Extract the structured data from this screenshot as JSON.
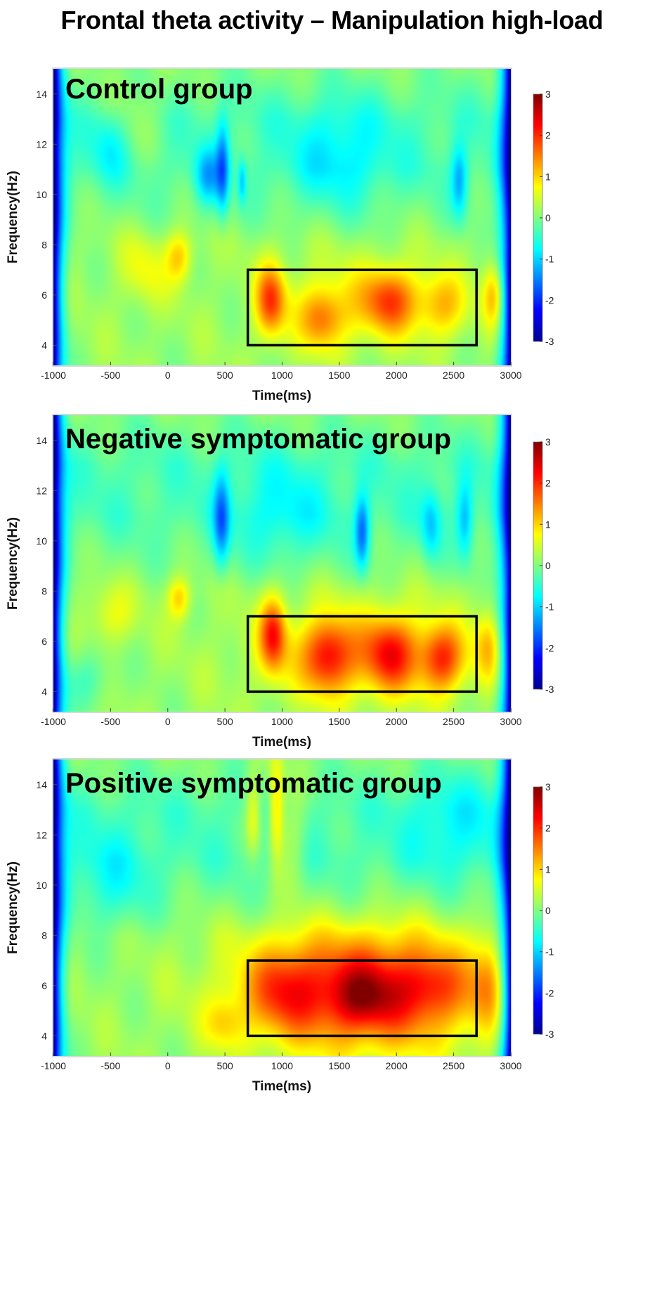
{
  "figure_title": "Frontal theta activity – Manipulation high-load",
  "chart_data": [
    {
      "type": "heatmap",
      "title": "Control group",
      "xlabel": "Time(ms)",
      "ylabel": "Frequency(Hz)",
      "xlim": [
        -1000,
        3000
      ],
      "ylim": [
        3.2,
        15
      ],
      "xticks": [
        -1000,
        -500,
        0,
        500,
        1000,
        1500,
        2000,
        2500,
        3000
      ],
      "yticks": [
        4,
        6,
        8,
        10,
        12,
        14
      ],
      "colorbar": {
        "range": [
          -3,
          3
        ],
        "ticks": [
          3,
          2,
          1,
          0,
          -1,
          -2,
          -3
        ],
        "colormap": "jet"
      },
      "roi": {
        "time": [
          700,
          2700
        ],
        "freq": [
          4,
          7
        ]
      },
      "blobs": [
        {
          "t": 900,
          "f": 5.8,
          "amp": 1.6,
          "st": 90,
          "sf": 1.0
        },
        {
          "t": 1350,
          "f": 5.0,
          "amp": 1.0,
          "st": 130,
          "sf": 0.8
        },
        {
          "t": 1950,
          "f": 5.8,
          "amp": 1.4,
          "st": 160,
          "sf": 0.9
        },
        {
          "t": 2400,
          "f": 5.6,
          "amp": 1.0,
          "st": 150,
          "sf": 0.9
        },
        {
          "t": 2850,
          "f": 6.0,
          "amp": 1.0,
          "st": 70,
          "sf": 0.9
        },
        {
          "t": 1550,
          "f": 5.6,
          "amp": 0.6,
          "st": 400,
          "sf": 1.2
        },
        {
          "t": 100,
          "f": 7.5,
          "amp": 0.9,
          "st": 80,
          "sf": 0.7
        },
        {
          "t": -200,
          "f": 7.0,
          "amp": 0.5,
          "st": 150,
          "sf": 1.0
        },
        {
          "t": 350,
          "f": 10.7,
          "amp": -1.0,
          "st": 80,
          "sf": 0.8
        },
        {
          "t": 480,
          "f": 11.0,
          "amp": -1.2,
          "st": 40,
          "sf": 1.3
        },
        {
          "t": 650,
          "f": 10.5,
          "amp": -0.8,
          "st": 25,
          "sf": 0.6
        },
        {
          "t": 2550,
          "f": 10.5,
          "amp": -1.0,
          "st": 50,
          "sf": 1.0
        },
        {
          "t": -500,
          "f": 12.0,
          "amp": -0.6,
          "st": 120,
          "sf": 1.0
        },
        {
          "t": 1500,
          "f": 11.5,
          "amp": -0.6,
          "st": 300,
          "sf": 1.5
        },
        {
          "t": -300,
          "f": 13.0,
          "amp": 0.4,
          "st": 200,
          "sf": 1.2
        }
      ]
    },
    {
      "type": "heatmap",
      "title": "Negative symptomatic group",
      "xlabel": "Time(ms)",
      "ylabel": "Frequency(Hz)",
      "xlim": [
        -1000,
        3000
      ],
      "ylim": [
        3.2,
        15
      ],
      "xticks": [
        -1000,
        -500,
        0,
        500,
        1000,
        1500,
        2000,
        2500,
        3000
      ],
      "yticks": [
        4,
        6,
        8,
        10,
        12,
        14
      ],
      "colorbar": {
        "range": [
          -3,
          3
        ],
        "ticks": [
          3,
          2,
          1,
          0,
          -1,
          -2,
          -3
        ],
        "colormap": "jet"
      },
      "roi": {
        "time": [
          700,
          2700
        ],
        "freq": [
          4,
          7
        ]
      },
      "blobs": [
        {
          "t": 920,
          "f": 6.3,
          "amp": 1.7,
          "st": 80,
          "sf": 1.0
        },
        {
          "t": 1400,
          "f": 5.4,
          "amp": 1.4,
          "st": 140,
          "sf": 1.0
        },
        {
          "t": 1950,
          "f": 5.5,
          "amp": 1.3,
          "st": 150,
          "sf": 1.0
        },
        {
          "t": 2400,
          "f": 5.3,
          "amp": 1.5,
          "st": 130,
          "sf": 0.9
        },
        {
          "t": 1700,
          "f": 5.5,
          "amp": 0.9,
          "st": 600,
          "sf": 1.3
        },
        {
          "t": 2800,
          "f": 5.8,
          "amp": 0.8,
          "st": 80,
          "sf": 1.0
        },
        {
          "t": 100,
          "f": 7.7,
          "amp": 0.9,
          "st": 70,
          "sf": 0.6
        },
        {
          "t": -500,
          "f": 7.0,
          "amp": 0.5,
          "st": 150,
          "sf": 0.8
        },
        {
          "t": 470,
          "f": 10.8,
          "amp": -1.3,
          "st": 50,
          "sf": 1.3
        },
        {
          "t": 1700,
          "f": 10.3,
          "amp": -1.4,
          "st": 45,
          "sf": 1.0
        },
        {
          "t": 2300,
          "f": 10.6,
          "amp": -0.8,
          "st": 60,
          "sf": 1.0
        },
        {
          "t": 2600,
          "f": 10.8,
          "amp": -0.9,
          "st": 50,
          "sf": 1.1
        },
        {
          "t": 1000,
          "f": 11.0,
          "amp": -0.5,
          "st": 300,
          "sf": 1.5
        },
        {
          "t": -700,
          "f": 4.5,
          "amp": -0.5,
          "st": 150,
          "sf": 0.8
        }
      ]
    },
    {
      "type": "heatmap",
      "title": "Positive symptomatic group",
      "xlabel": "Time(ms)",
      "ylabel": "Frequency(Hz)",
      "xlim": [
        -1000,
        3000
      ],
      "ylim": [
        3.2,
        15
      ],
      "xticks": [
        -1000,
        -500,
        0,
        500,
        1000,
        1500,
        2000,
        2500,
        3000
      ],
      "yticks": [
        4,
        6,
        8,
        10,
        12,
        14
      ],
      "colorbar": {
        "range": [
          -3,
          3
        ],
        "ticks": [
          3,
          2,
          1,
          0,
          -1,
          -2,
          -3
        ],
        "colormap": "jet"
      },
      "roi": {
        "time": [
          700,
          2700
        ],
        "freq": [
          4,
          7
        ]
      },
      "blobs": [
        {
          "t": 1750,
          "f": 5.8,
          "amp": 2.2,
          "st": 700,
          "sf": 1.6
        },
        {
          "t": 1700,
          "f": 5.5,
          "amp": 0.7,
          "st": 180,
          "sf": 0.8
        },
        {
          "t": 2300,
          "f": 6.0,
          "amp": 0.5,
          "st": 180,
          "sf": 0.8
        },
        {
          "t": 1000,
          "f": 5.8,
          "amp": 0.8,
          "st": 200,
          "sf": 1.2
        },
        {
          "t": 2800,
          "f": 6.2,
          "amp": 0.6,
          "st": 100,
          "sf": 1.2
        },
        {
          "t": 950,
          "f": 13.0,
          "amp": 1.2,
          "st": 50,
          "sf": 1.5
        },
        {
          "t": 750,
          "f": 12.8,
          "amp": 0.8,
          "st": 50,
          "sf": 1.2
        },
        {
          "t": 1100,
          "f": 12.0,
          "amp": 0.5,
          "st": 80,
          "sf": 1.5
        },
        {
          "t": 500,
          "f": 4.5,
          "amp": 0.6,
          "st": 120,
          "sf": 0.7
        },
        {
          "t": -500,
          "f": 10.0,
          "amp": -0.5,
          "st": 250,
          "sf": 1.5
        },
        {
          "t": 2500,
          "f": 12.5,
          "amp": -0.5,
          "st": 300,
          "sf": 1.5
        }
      ]
    }
  ]
}
